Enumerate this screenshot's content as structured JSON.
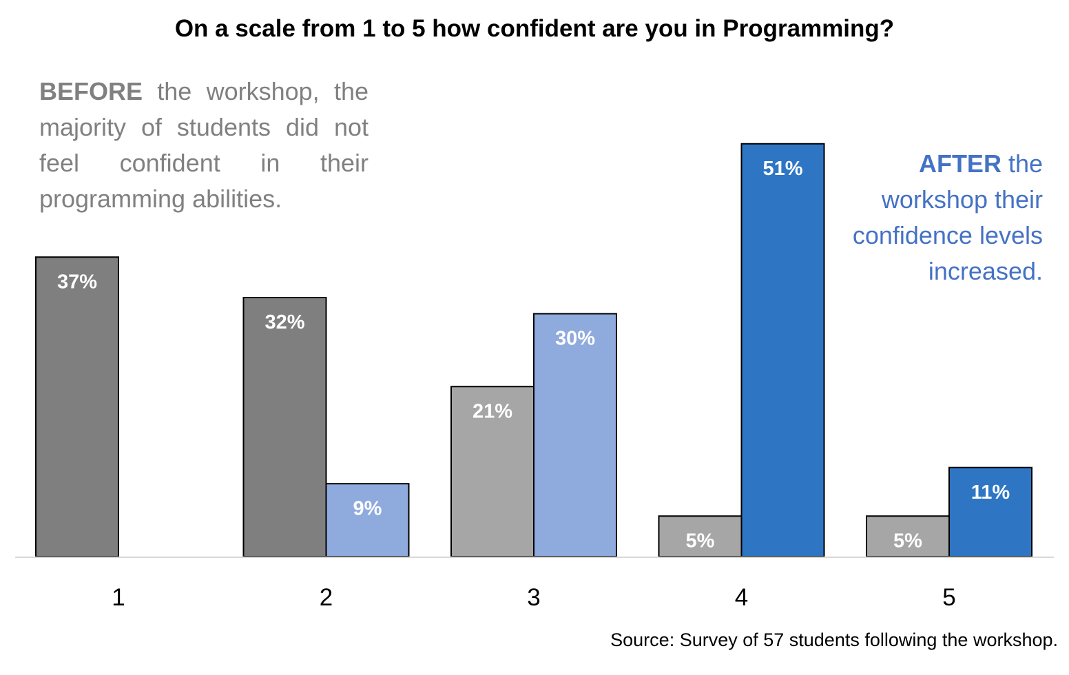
{
  "chart_data": {
    "type": "bar",
    "title": "On a scale from 1 to 5 how confident are you in Programming?",
    "xlabel": "",
    "ylabel": "",
    "categories": [
      "1",
      "2",
      "3",
      "4",
      "5"
    ],
    "series": [
      {
        "values": [
          37,
          32,
          21,
          5,
          5
        ],
        "data_labels": [
          "37%",
          "32%",
          "21%",
          "5%",
          "5%"
        ],
        "colors": [
          "#7F7F7F",
          "#7F7F7F",
          "#A6A6A6",
          "#A6A6A6",
          "#A6A6A6"
        ]
      },
      {
        "values": [
          null,
          9,
          30,
          51,
          11
        ],
        "data_labels": [
          "",
          "9%",
          "30%",
          "51%",
          "11%"
        ],
        "colors": [
          "#8FAADC",
          "#8FAADC",
          "#8FAADC",
          "#2E75C4",
          "#2E75C4"
        ]
      }
    ],
    "ylim": [
      0,
      60
    ],
    "grid": false,
    "legend": "none",
    "annotations": {
      "before": {
        "bold": "BEFORE",
        "text": " the workshop, the majority of students did not feel confident in their programming abilities."
      },
      "after": {
        "bold": "AFTER",
        "text": " the workshop their confidence levels increased."
      }
    },
    "source": "Source: Survey of 57 students following the workshop."
  },
  "colors": {
    "before_text": "#808080",
    "after_text": "#4472C4",
    "baseline": "#D9D9D9",
    "bar_outline": "#000000",
    "label_text": "#FFFFFF"
  }
}
